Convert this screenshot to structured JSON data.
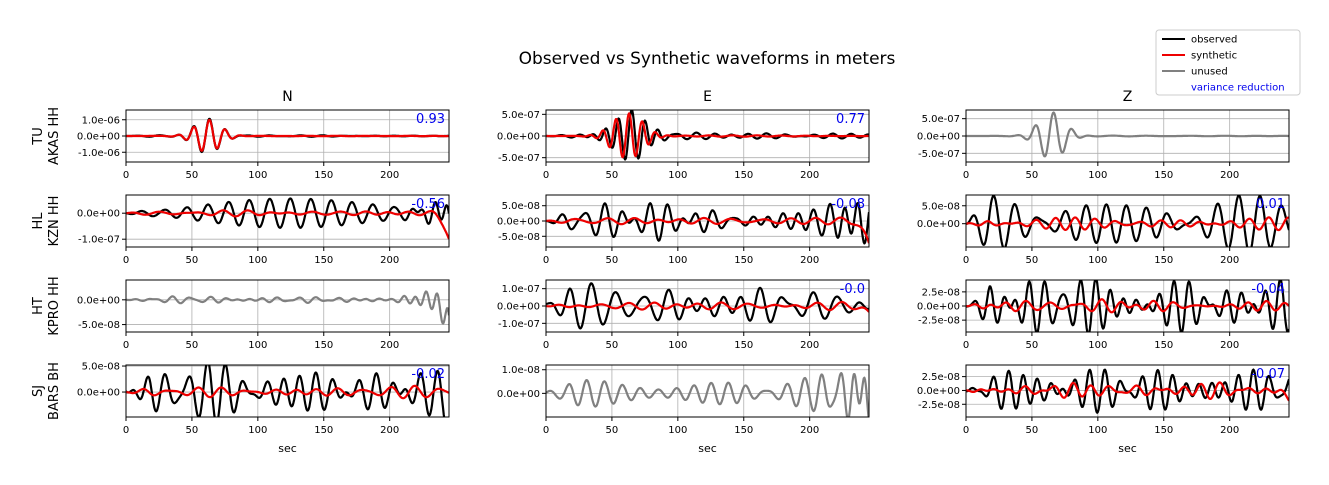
{
  "chart_data": {
    "type": "line",
    "title": "Observed vs Synthetic waveforms in meters",
    "columns": [
      "N",
      "E",
      "Z"
    ],
    "xlabel": "sec",
    "xlim": [
      0,
      245
    ],
    "xticks": [
      0,
      50,
      100,
      150,
      200
    ],
    "legend": {
      "placement": "top-right",
      "entries": [
        {
          "label": "observed",
          "color": "#000000"
        },
        {
          "label": "synthetic",
          "color": "#ee0000"
        },
        {
          "label": "unused",
          "color": "#808080"
        },
        {
          "label": "variance reduction",
          "color": "#0000ee",
          "text_only": true
        }
      ]
    },
    "colors": {
      "observed": "#000000",
      "synthetic": "#ee0000",
      "unused": "#808080",
      "vr": "#0000ee"
    },
    "rows": [
      {
        "label_line1": "TU",
        "label_line2": "AKAS HH",
        "panels": [
          {
            "used": true,
            "vr": "0.93",
            "ylim": [
              -1.6e-06,
              1.6e-06
            ],
            "yticks": [
              {
                "v": 1e-06,
                "label": "1.0e-06"
              },
              {
                "v": 0,
                "label": "0.0e+00"
              },
              {
                "v": -1e-06,
                "label": "-1.0e-06"
              }
            ],
            "wave": {
              "kind": "event",
              "center": 62,
              "width": 14,
              "period": 12,
              "amp": 1.05e-06,
              "noise_amp": 5e-08,
              "noise_period": 18
            },
            "synth": {
              "kind": "event",
              "center": 62,
              "width": 14,
              "period": 12,
              "amp": 1e-06,
              "noise_amp": 2e-08,
              "noise_period": 22
            }
          },
          {
            "used": true,
            "vr": "0.77",
            "ylim": [
              -6e-07,
              6e-07
            ],
            "yticks": [
              {
                "v": 5e-07,
                "label": "5.0e-07"
              },
              {
                "v": 0,
                "label": "0.0e+00"
              },
              {
                "v": -5e-07,
                "label": "-5.0e-07"
              }
            ],
            "wave": {
              "kind": "event",
              "center": 64,
              "width": 18,
              "period": 10,
              "amp": 5.5e-07,
              "noise_amp": 7e-08,
              "noise_period": 13
            },
            "synth": {
              "kind": "event",
              "center": 62,
              "width": 16,
              "period": 10,
              "amp": 5.3e-07,
              "noise_amp": 1.5e-08,
              "noise_period": 20
            }
          },
          {
            "used": false,
            "vr": "",
            "ylim": [
              -7.5e-07,
              7.5e-07
            ],
            "yticks": [
              {
                "v": 5e-07,
                "label": "5.0e-07"
              },
              {
                "v": 0,
                "label": "0.0e+00"
              },
              {
                "v": -5e-07,
                "label": "-5.0e-07"
              }
            ],
            "wave": {
              "kind": "event",
              "center": 65,
              "width": 14,
              "period": 14,
              "amp": 6.8e-07,
              "noise_amp": 1e-08,
              "noise_period": 25
            },
            "synth": null
          }
        ]
      },
      {
        "label_line1": "HL",
        "label_line2": "KZN HH",
        "panels": [
          {
            "used": true,
            "vr": "-0.56",
            "ylim": [
              -1.3e-07,
              7e-08
            ],
            "yticks": [
              {
                "v": 0,
                "label": "0.0e+00"
              },
              {
                "v": -1e-07,
                "label": "-1.0e-07"
              }
            ],
            "wave": {
              "kind": "noise",
              "amp": 2.8e-08,
              "period": 13,
              "tail_amp": 5e-08
            },
            "synth": {
              "kind": "noise",
              "amp": 8e-09,
              "period": 18,
              "tail_drop": -1e-07
            }
          },
          {
            "used": true,
            "vr": "-0.08",
            "ylim": [
              -8.5e-08,
              8.5e-08
            ],
            "yticks": [
              {
                "v": 5e-08,
                "label": "5.0e-08"
              },
              {
                "v": 0,
                "label": "0.0e+00"
              },
              {
                "v": -5e-08,
                "label": "-5.0e-08"
              }
            ],
            "wave": {
              "kind": "noise",
              "amp": 3.5e-08,
              "period": 14,
              "tail_amp": 6e-08
            },
            "synth": {
              "kind": "noise",
              "amp": 9e-09,
              "period": 20,
              "tail_drop": -8e-08
            }
          },
          {
            "used": true,
            "vr": "0.01",
            "ylim": [
              -6.5e-08,
              8e-08
            ],
            "yticks": [
              {
                "v": 5e-08,
                "label": "5.0e-08"
              },
              {
                "v": 0,
                "label": "0.0e+00"
              }
            ],
            "wave": {
              "kind": "noise",
              "amp": 4.8e-08,
              "period": 15,
              "tail_amp": 0
            },
            "synth": {
              "kind": "noise",
              "amp": 1.3e-08,
              "period": 17,
              "tail_drop": 0
            }
          }
        ]
      },
      {
        "label_line1": "HT",
        "label_line2": "KPRO HH",
        "panels": [
          {
            "used": false,
            "vr": "",
            "ylim": [
              -6.5e-08,
              4e-08
            ],
            "yticks": [
              {
                "v": 0,
                "label": "0.0e+00"
              },
              {
                "v": -5e-08,
                "label": "-5.0e-08"
              }
            ],
            "wave": {
              "kind": "noise",
              "amp": 4e-09,
              "period": 12,
              "tail_amp": 3.5e-08,
              "tail_drop": -6e-08
            },
            "synth": null
          },
          {
            "used": true,
            "vr": "-0.0",
            "ylim": [
              -1.5e-07,
              1.5e-07
            ],
            "yticks": [
              {
                "v": 1e-07,
                "label": "1.0e-07"
              },
              {
                "v": 0,
                "label": "0.0e+00"
              },
              {
                "v": -1e-07,
                "label": "-1.0e-07"
              }
            ],
            "wave": {
              "kind": "noise",
              "amp": 6e-08,
              "period": 16,
              "early_amp": 1.4e-07,
              "tail_amp": 0
            },
            "synth": {
              "kind": "noise",
              "amp": 1.3e-08,
              "period": 18,
              "tail_drop": -4e-08
            }
          },
          {
            "used": true,
            "vr": "-0.04",
            "ylim": [
              -4.6e-08,
              4.6e-08
            ],
            "yticks": [
              {
                "v": 2.5e-08,
                "label": "2.5e-08"
              },
              {
                "v": 0,
                "label": "0.0e+00"
              },
              {
                "v": -2.5e-08,
                "label": "-2.5e-08"
              }
            ],
            "wave": {
              "kind": "noise",
              "amp": 3.2e-08,
              "period": 12,
              "early_amp": 4.4e-08,
              "tail_amp": 0
            },
            "synth": {
              "kind": "noise",
              "amp": 8e-09,
              "period": 16,
              "tail_drop": 0
            }
          }
        ]
      },
      {
        "label_line1": "SJ",
        "label_line2": "BARS BH",
        "panels": [
          {
            "used": true,
            "vr": "-0.02",
            "ylim": [
              -4.8e-08,
              5.2e-08
            ],
            "yticks": [
              {
                "v": 5e-08,
                "label": "5.0e-08"
              },
              {
                "v": 0,
                "label": "0.0e+00"
              }
            ],
            "wave": {
              "kind": "noise",
              "amp": 3.5e-08,
              "period": 14,
              "early_amp": 5e-08,
              "tail_amp": 0,
              "tail_drop": -4.5e-08
            },
            "synth": {
              "kind": "noise",
              "amp": 9e-09,
              "period": 17,
              "tail_drop": 0
            }
          },
          {
            "used": false,
            "vr": "",
            "ylim": [
              -1e-08,
              1.2e-08
            ],
            "yticks": [
              {
                "v": 1e-08,
                "label": "1.0e-08"
              },
              {
                "v": 0,
                "label": "0.0e+00"
              }
            ],
            "wave": {
              "kind": "noise",
              "amp": 5e-09,
              "period": 12,
              "early_amp": 9e-09,
              "tail_amp": 1.1e-08
            },
            "synth": null
          },
          {
            "used": true,
            "vr": "-0.07",
            "ylim": [
              -4.8e-08,
              4.6e-08
            ],
            "yticks": [
              {
                "v": 2.5e-08,
                "label": "2.5e-08"
              },
              {
                "v": 0,
                "label": "0.0e+00"
              },
              {
                "v": -2.5e-08,
                "label": "-2.5e-08"
              }
            ],
            "wave": {
              "kind": "noise",
              "amp": 3.2e-08,
              "period": 12,
              "early_amp": 4e-08,
              "tail_amp": 0
            },
            "synth": {
              "kind": "noise",
              "amp": 9e-09,
              "period": 16,
              "tail_drop": -1.5e-08
            }
          }
        ]
      }
    ]
  }
}
